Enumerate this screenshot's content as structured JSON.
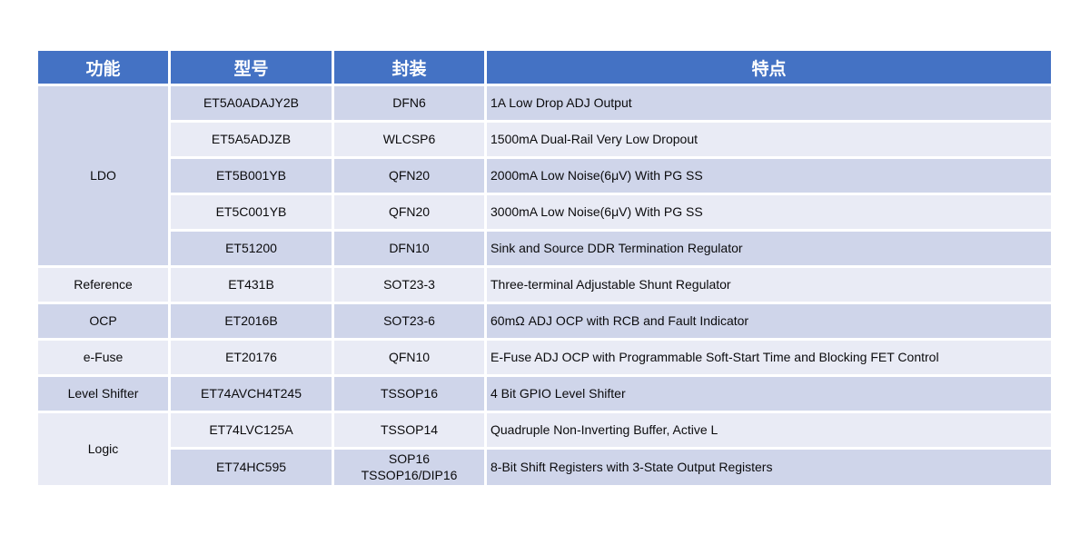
{
  "colors": {
    "header_bg": "#4472C4",
    "header_text": "#FFFFFF",
    "row_dark": "#CFD5EA",
    "row_light": "#E9EBF5",
    "body_text": "#0B0B0D",
    "page_bg": "#FFFFFF"
  },
  "table": {
    "headers": [
      "功能",
      "型号",
      "封装",
      "特点"
    ],
    "groups": [
      {
        "function": "LDO",
        "rows": [
          {
            "model": "ET5A0ADAJY2B",
            "package": "DFN6",
            "feature": "1A Low Drop ADJ Output"
          },
          {
            "model": "ET5A5ADJZB",
            "package": "WLCSP6",
            "feature": "1500mA Dual-Rail Very Low Dropout"
          },
          {
            "model": "ET5B001YB",
            "package": "QFN20",
            "feature": "2000mA Low Noise(6μV) With PG SS"
          },
          {
            "model": "ET5C001YB",
            "package": "QFN20",
            "feature": "3000mA Low Noise(6μV) With PG SS"
          },
          {
            "model": "ET51200",
            "package": "DFN10",
            "feature": "Sink and Source DDR Termination Regulator"
          }
        ]
      },
      {
        "function": "Reference",
        "rows": [
          {
            "model": "ET431B",
            "package": "SOT23-3",
            "feature": "Three-terminal Adjustable Shunt Regulator"
          }
        ]
      },
      {
        "function": "OCP",
        "rows": [
          {
            "model": "ET2016B",
            "package": "SOT23-6",
            "feature": "60mΩ ADJ OCP with RCB and Fault Indicator"
          }
        ]
      },
      {
        "function": "e-Fuse",
        "rows": [
          {
            "model": "ET20176",
            "package": "QFN10",
            "feature": "E-Fuse ADJ OCP with Programmable Soft-Start Time and Blocking FET Control"
          }
        ]
      },
      {
        "function": "Level Shifter",
        "rows": [
          {
            "model": "ET74AVCH4T245",
            "package": "TSSOP16",
            "feature": "4 Bit GPIO Level Shifter"
          }
        ]
      },
      {
        "function": "Logic",
        "rows": [
          {
            "model": "ET74LVC125A",
            "package": "TSSOP14",
            "feature": "Quadruple Non-Inverting Buffer, Active L"
          },
          {
            "model": "ET74HC595",
            "package": "SOP16\nTSSOP16/DIP16",
            "feature": "8-Bit Shift Registers with 3-State Output Registers"
          }
        ]
      }
    ]
  }
}
